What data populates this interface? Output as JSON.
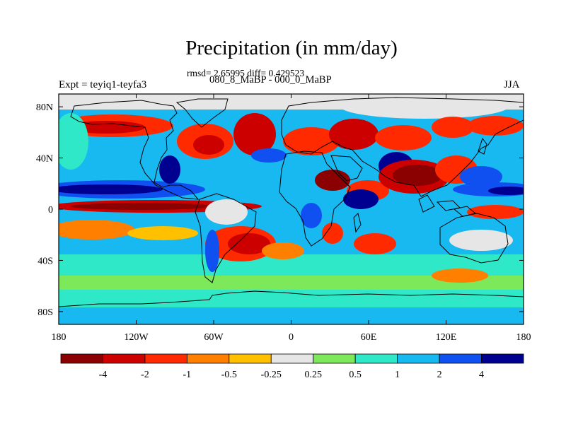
{
  "title": "Precipitation (in mm/day)",
  "stats": "rmsd= 2.65995 diff= 0.429523",
  "periods": "080_8_MaBP - 000_0_MaBP",
  "experiment": "Expt = teyiq1-teyfa3",
  "season": "JJA",
  "chart_data": {
    "type": "heatmap",
    "projection": "cylindrical-equidistant",
    "lon_range": [
      -180,
      180
    ],
    "lat_range": [
      -90,
      90
    ],
    "x_tick_labels": [
      "180",
      "120W",
      "60W",
      "0",
      "60E",
      "120E",
      "180"
    ],
    "x_tick_values": [
      -180,
      -120,
      -60,
      0,
      60,
      120,
      180
    ],
    "y_tick_labels": [
      "80N",
      "40N",
      "0",
      "40S",
      "80S"
    ],
    "y_tick_values": [
      80,
      40,
      0,
      -40,
      -80
    ],
    "colorbar": {
      "orientation": "horizontal",
      "labels": [
        "-4",
        "-2",
        "-1",
        "-0.5",
        "-0.25",
        "0.25",
        "0.5",
        "1",
        "2",
        "4"
      ],
      "colors": [
        "#8b0000",
        "#cd0000",
        "#ff2a00",
        "#ff7f00",
        "#ffc000",
        "#e6e6e6",
        "#7de85a",
        "#2fe8c8",
        "#18b8f0",
        "#1050f0",
        "#000090"
      ]
    }
  }
}
